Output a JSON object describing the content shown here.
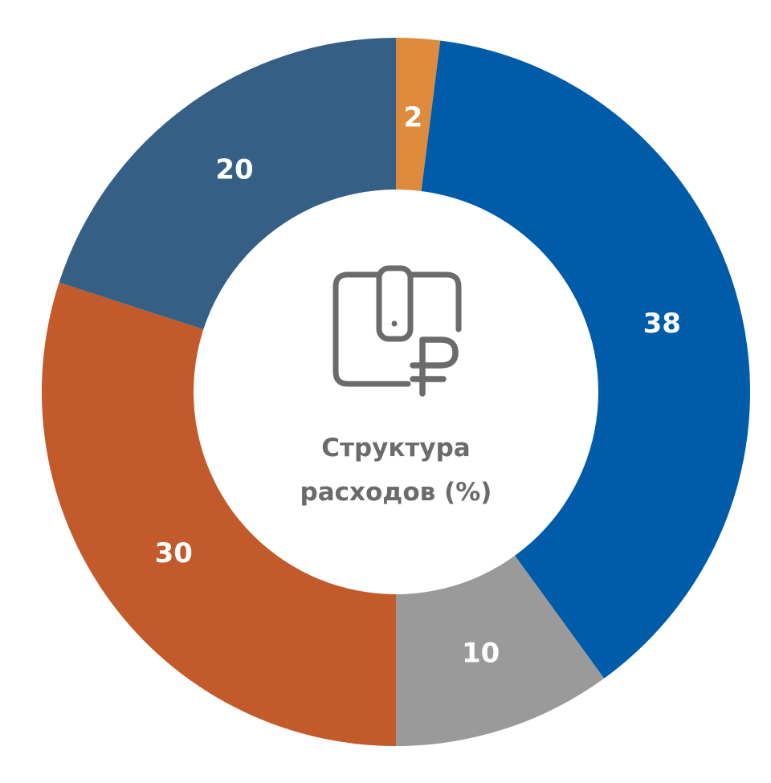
{
  "chart_data": {
    "type": "pie",
    "variant": "donut",
    "title_lines": [
      "Структура",
      "расходов (%)"
    ],
    "categories": [
      "",
      "",
      "",
      "",
      ""
    ],
    "values": [
      2,
      38,
      10,
      30,
      20
    ],
    "colors": [
      "#DE8B3E",
      "#005BA8",
      "#9A9A9A",
      "#C25A2B",
      "#355F85"
    ],
    "data_labels": [
      "2",
      "38",
      "10",
      "30",
      "20"
    ],
    "legend": "none",
    "center_icon": "wallet-ruble-icon"
  }
}
